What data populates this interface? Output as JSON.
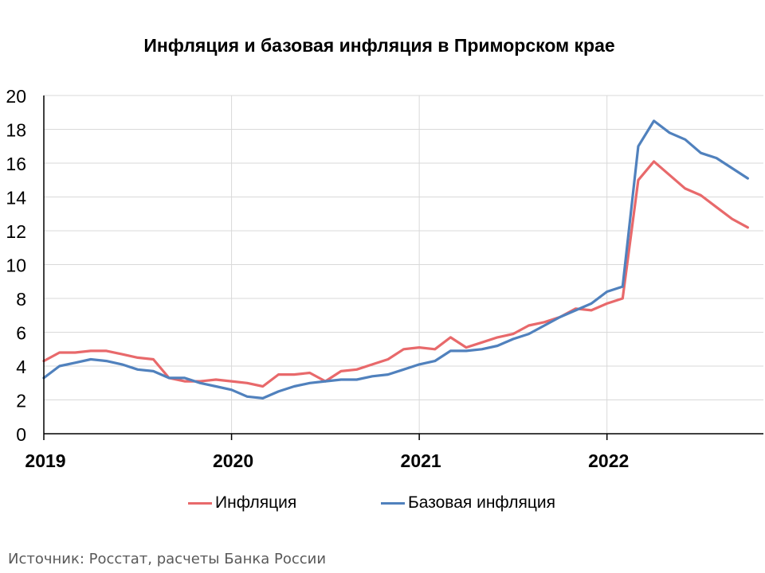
{
  "colors": {
    "inflation": "#e8696b",
    "core_inflation": "#5081bd",
    "grid": "#d9d9d9",
    "axis": "#000000"
  },
  "source": "Источник: Росстат, расчеты Банка России",
  "chart_data": {
    "type": "line",
    "title": "Инфляция и базовая инфляция в Приморском крае",
    "xlabel": "",
    "ylabel": "",
    "x_ticks": [
      "2019",
      "2020",
      "2021",
      "2022"
    ],
    "ylim": [
      0,
      20
    ],
    "y_ticks": [
      "0",
      "2",
      "4",
      "6",
      "8",
      "10",
      "12",
      "14",
      "16",
      "18",
      "20"
    ],
    "grid": true,
    "legend": "bottom",
    "x": [
      "2019-01",
      "2019-02",
      "2019-03",
      "2019-04",
      "2019-05",
      "2019-06",
      "2019-07",
      "2019-08",
      "2019-09",
      "2019-10",
      "2019-11",
      "2019-12",
      "2020-01",
      "2020-02",
      "2020-03",
      "2020-04",
      "2020-05",
      "2020-06",
      "2020-07",
      "2020-08",
      "2020-09",
      "2020-10",
      "2020-11",
      "2020-12",
      "2021-01",
      "2021-02",
      "2021-03",
      "2021-04",
      "2021-05",
      "2021-06",
      "2021-07",
      "2021-08",
      "2021-09",
      "2021-10",
      "2021-11",
      "2021-12",
      "2022-01",
      "2022-02",
      "2022-03",
      "2022-04",
      "2022-05",
      "2022-06",
      "2022-07",
      "2022-08",
      "2022-09",
      "2022-10"
    ],
    "series": [
      {
        "name": "Инфляция",
        "values": [
          4.3,
          4.8,
          4.8,
          4.9,
          4.9,
          4.7,
          4.5,
          4.4,
          3.3,
          3.1,
          3.1,
          3.2,
          3.1,
          3.0,
          2.8,
          3.5,
          3.5,
          3.6,
          3.1,
          3.7,
          3.8,
          4.1,
          4.4,
          5.0,
          5.1,
          5.0,
          5.7,
          5.1,
          5.4,
          5.7,
          5.9,
          6.4,
          6.6,
          6.9,
          7.4,
          7.3,
          7.7,
          8.0,
          15.0,
          16.1,
          15.3,
          14.5,
          14.1,
          13.4,
          12.7,
          12.2
        ]
      },
      {
        "name": "Базовая инфляция",
        "values": [
          3.3,
          4.0,
          4.2,
          4.4,
          4.3,
          4.1,
          3.8,
          3.7,
          3.3,
          3.3,
          3.0,
          2.8,
          2.6,
          2.2,
          2.1,
          2.5,
          2.8,
          3.0,
          3.1,
          3.2,
          3.2,
          3.4,
          3.5,
          3.8,
          4.1,
          4.3,
          4.9,
          4.9,
          5.0,
          5.2,
          5.6,
          5.9,
          6.4,
          6.9,
          7.3,
          7.7,
          8.4,
          8.7,
          17.0,
          18.5,
          17.8,
          17.4,
          16.6,
          16.3,
          15.7,
          15.1
        ]
      }
    ]
  }
}
